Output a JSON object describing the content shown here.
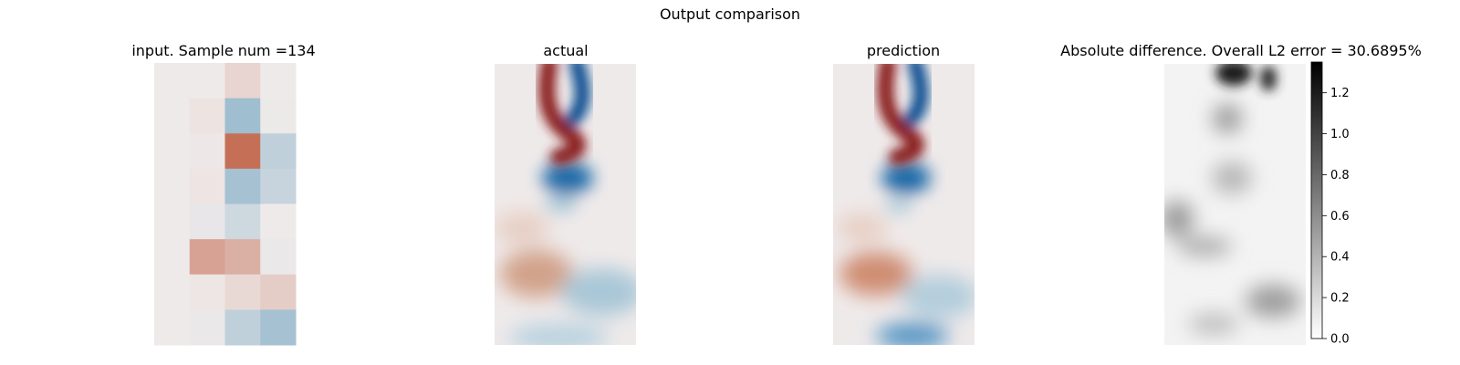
{
  "figure": {
    "suptitle": "Output comparison"
  },
  "chart_data": [
    {
      "type": "heatmap",
      "title": "input. Sample num =134",
      "colormap": "diverging red-white-blue",
      "grid_rows": 8,
      "grid_cols": 4,
      "values": [
        [
          0.0,
          0.0,
          0.15,
          0.0
        ],
        [
          0.0,
          0.05,
          -0.6,
          -0.02
        ],
        [
          0.0,
          0.02,
          0.85,
          -0.35
        ],
        [
          0.0,
          0.04,
          -0.55,
          -0.3
        ],
        [
          0.0,
          -0.05,
          -0.25,
          0.0
        ],
        [
          0.0,
          0.5,
          0.4,
          -0.03
        ],
        [
          0.0,
          0.03,
          0.12,
          0.2
        ],
        [
          0.0,
          -0.03,
          -0.35,
          -0.55
        ]
      ]
    },
    {
      "type": "heatmap",
      "title": "actual",
      "colormap": "diverging red-white-blue"
    },
    {
      "type": "heatmap",
      "title": "prediction",
      "colormap": "diverging red-white-blue"
    },
    {
      "type": "heatmap",
      "title": "Absolute difference. Overall L2 error = 30.6895%",
      "colormap": "grayscale (white=0, black=max)",
      "colorbar": {
        "ticks": [
          "0.0",
          "0.2",
          "0.4",
          "0.6",
          "0.8",
          "1.0",
          "1.2"
        ],
        "range": [
          0.0,
          1.35
        ]
      }
    }
  ]
}
